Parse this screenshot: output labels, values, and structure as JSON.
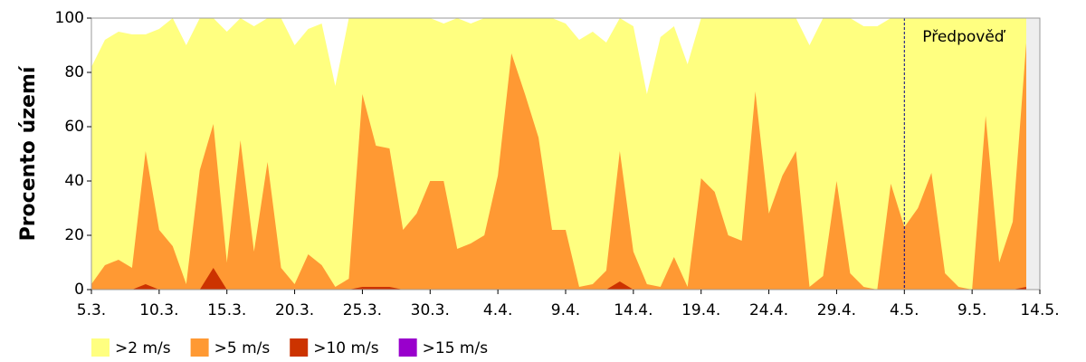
{
  "chart_data": {
    "type": "area",
    "y_label": "Procento území",
    "x": [
      0,
      1,
      2,
      3,
      4,
      5,
      6,
      7,
      8,
      9,
      10,
      11,
      12,
      13,
      14,
      15,
      16,
      17,
      18,
      19,
      20,
      21,
      22,
      23,
      24,
      25,
      26,
      27,
      28,
      29,
      30,
      31,
      32,
      33,
      34,
      35,
      36,
      37,
      38,
      39,
      40,
      41,
      42,
      43,
      44,
      45,
      46,
      47,
      48,
      49,
      50,
      51,
      52,
      53,
      54,
      55,
      56,
      57,
      58,
      59,
      60,
      61,
      62,
      63,
      64,
      65,
      66,
      67,
      68,
      69
    ],
    "xlim": [
      0,
      70
    ],
    "xticks": [
      {
        "value": 0,
        "label": "5.3."
      },
      {
        "value": 5,
        "label": "10.3."
      },
      {
        "value": 10,
        "label": "15.3."
      },
      {
        "value": 15,
        "label": "20.3."
      },
      {
        "value": 20,
        "label": "25.3."
      },
      {
        "value": 25,
        "label": "30.3."
      },
      {
        "value": 30,
        "label": "4.4."
      },
      {
        "value": 35,
        "label": "9.4."
      },
      {
        "value": 40,
        "label": "14.4."
      },
      {
        "value": 45,
        "label": "19.4."
      },
      {
        "value": 50,
        "label": "24.4."
      },
      {
        "value": 55,
        "label": "29.4."
      },
      {
        "value": 60,
        "label": "4.5."
      },
      {
        "value": 65,
        "label": "9.5."
      },
      {
        "value": 70,
        "label": "14.5."
      }
    ],
    "ylim": [
      0,
      100
    ],
    "yticks": [
      0,
      20,
      40,
      60,
      80,
      100
    ],
    "forecast": {
      "x": 60,
      "label": "Předpověď"
    },
    "series": [
      {
        "name": ">2 m/s",
        "color": "#ffff80",
        "values": [
          82,
          92,
          95,
          94,
          94,
          96,
          100,
          90,
          100,
          100,
          95,
          100,
          97,
          100,
          100,
          90,
          96,
          98,
          75,
          100,
          100,
          100,
          100,
          100,
          100,
          100,
          98,
          100,
          98,
          100,
          100,
          100,
          100,
          100,
          100,
          98,
          92,
          95,
          91,
          100,
          97,
          72,
          93,
          97,
          83,
          100,
          100,
          100,
          100,
          100,
          100,
          100,
          100,
          90,
          100,
          100,
          100,
          97,
          97,
          100,
          100,
          100,
          100,
          100,
          100,
          100,
          100,
          100,
          100,
          100
        ]
      },
      {
        "name": ">5 m/s",
        "color": "#ff9933",
        "values": [
          2,
          9,
          11,
          8,
          51,
          22,
          16,
          2,
          44,
          61,
          10,
          55,
          14,
          47,
          8,
          2,
          13,
          9,
          1,
          4,
          72,
          53,
          52,
          22,
          28,
          40,
          40,
          15,
          17,
          20,
          42,
          87,
          72,
          56,
          22,
          22,
          1,
          2,
          7,
          51,
          14,
          2,
          1,
          12,
          1,
          41,
          36,
          20,
          18,
          73,
          28,
          42,
          51,
          1,
          5,
          40,
          6,
          1,
          0,
          39,
          23,
          30,
          43,
          6,
          1,
          0,
          64,
          10,
          25,
          91
        ]
      },
      {
        "name": ">10 m/s",
        "color": "#cc3300",
        "values": [
          0,
          0,
          0,
          0,
          2,
          0,
          0,
          0,
          0,
          8,
          0,
          0,
          0,
          0,
          0,
          0,
          0,
          0,
          0,
          0,
          1,
          1,
          1,
          0,
          0,
          0,
          0,
          0,
          0,
          0,
          0,
          0,
          0,
          0,
          0,
          0,
          0,
          0,
          0,
          3,
          0,
          0,
          0,
          0,
          0,
          0,
          0,
          0,
          0,
          0,
          0,
          0,
          0,
          0,
          0,
          0,
          0,
          0,
          0,
          0,
          0,
          0,
          0,
          0,
          0,
          0,
          0,
          0,
          0,
          1
        ]
      },
      {
        "name": ">15 m/s",
        "color": "#9900cc",
        "values": [
          0,
          0,
          0,
          0,
          0,
          0,
          0,
          0,
          0,
          0,
          0,
          0,
          0,
          0,
          0,
          0,
          0,
          0,
          0,
          0,
          0,
          0,
          0,
          0,
          0,
          0,
          0,
          0,
          0,
          0,
          0,
          0,
          0,
          0,
          0,
          0,
          0,
          0,
          0,
          0,
          0,
          0,
          0,
          0,
          0,
          0,
          0,
          0,
          0,
          0,
          0,
          0,
          0,
          0,
          0,
          0,
          0,
          0,
          0,
          0,
          0,
          0,
          0,
          0,
          0,
          0,
          0,
          0,
          0,
          0
        ]
      }
    ]
  }
}
